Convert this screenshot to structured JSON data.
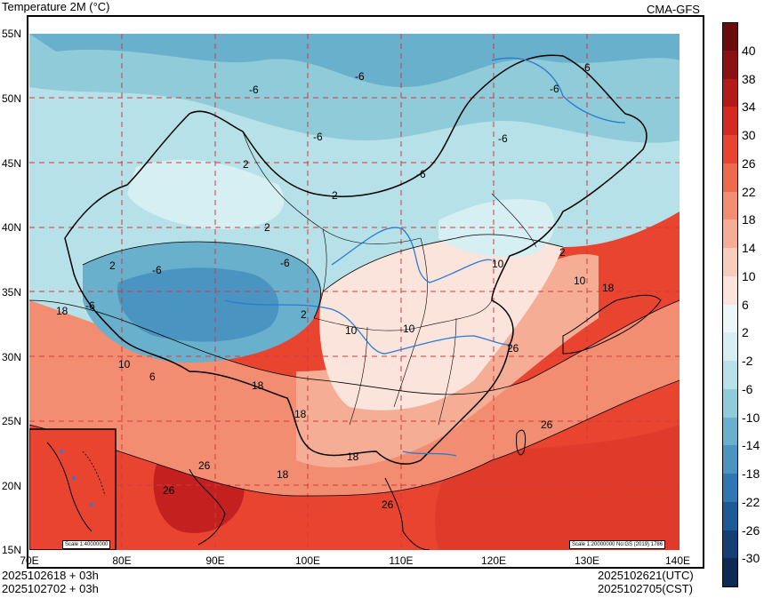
{
  "header": {
    "title": "Temperature  2M (°C)",
    "model": "CMA-GFS"
  },
  "footer": {
    "init_utc": "2025102618 + 03h",
    "init_cst": "2025102702 + 03h",
    "valid_utc": "2025102621(UTC)",
    "valid_cst": "2025102705(CST)"
  },
  "axes": {
    "lat_labels": [
      "55N",
      "50N",
      "45N",
      "40N",
      "35N",
      "30N",
      "25N",
      "20N",
      "15N"
    ],
    "lon_labels": [
      "70E",
      "80E",
      "90E",
      "100E",
      "110E",
      "120E",
      "130E",
      "140E"
    ]
  },
  "colorbar": {
    "labels": [
      "40",
      "38",
      "34",
      "30",
      "26",
      "22",
      "18",
      "14",
      "10",
      "6",
      "2",
      "-2",
      "-6",
      "-10",
      "-14",
      "-18",
      "-22",
      "-26",
      "-30"
    ],
    "colors": [
      "#6b0c0c",
      "#8b1212",
      "#b31a1a",
      "#d42a22",
      "#e8442f",
      "#ee6a4f",
      "#f28d72",
      "#f5ad96",
      "#f8cdbc",
      "#fbe4dc",
      "#ecf7f9",
      "#d6eff3",
      "#b6e1e8",
      "#8fcbd8",
      "#69b0cc",
      "#4a94c2",
      "#2f77b2",
      "#1e5a97",
      "#153f74",
      "#0e2a53"
    ]
  },
  "contour_labels": [
    "-6",
    "-6",
    "-6",
    "-6",
    "-6",
    "-6",
    "-6",
    "-6",
    "-6",
    "-6",
    "2",
    "2",
    "2",
    "2",
    "2",
    "2",
    "6",
    "10",
    "10",
    "10",
    "10",
    "10",
    "18",
    "18",
    "18",
    "18",
    "18",
    "18",
    "26",
    "26",
    "26",
    "26"
  ],
  "scale_labels": {
    "inset": "Scale 1:40000000",
    "main": "Scale 1:20000000 No:GS (2019) 1786"
  }
}
